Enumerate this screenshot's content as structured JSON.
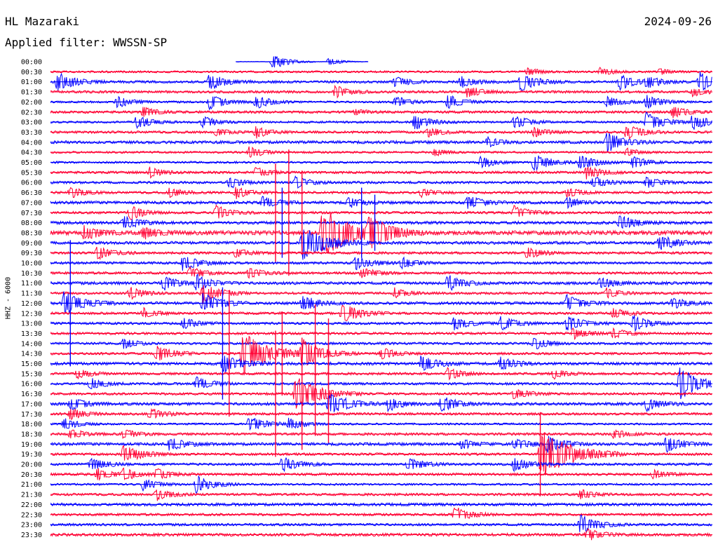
{
  "header": {
    "station": "HL Mazaraki",
    "date": "2024-09-26",
    "filter": "Applied filter: WWSSN-SP"
  },
  "chart_data": {
    "type": "helicorder",
    "title": "HL Mazaraki",
    "date": "2024-09-26",
    "filter": "WWSSN-SP",
    "channel_label": "HHZ - 6000",
    "colors": {
      "even_rows": "#0000ff",
      "odd_rows": "#ff0033",
      "background": "#ffffff"
    },
    "rows": [
      "00:00",
      "00:30",
      "01:00",
      "01:30",
      "02:00",
      "02:30",
      "03:00",
      "03:30",
      "04:00",
      "04:30",
      "05:00",
      "05:30",
      "06:00",
      "06:30",
      "07:00",
      "07:30",
      "08:00",
      "08:30",
      "09:00",
      "09:30",
      "10:00",
      "10:30",
      "11:00",
      "11:30",
      "12:00",
      "12:30",
      "13:00",
      "13:30",
      "14:00",
      "14:30",
      "15:00",
      "15:30",
      "16:00",
      "16:30",
      "17:00",
      "17:30",
      "18:00",
      "18:30",
      "19:00",
      "19:30",
      "20:00",
      "20:30",
      "21:00",
      "21:30",
      "22:00",
      "22:30",
      "23:00",
      "23:30"
    ],
    "row_minutes": 30,
    "trace_start_fraction": {
      "00:00": 0.28
    },
    "trace_end_fraction": {
      "00:00": 0.48
    },
    "noise_level": [
      0.3,
      1,
      1.2,
      1.2,
      1,
      1.2,
      1,
      1.2,
      1.4,
      1,
      1,
      1.2,
      1.2,
      1.2,
      1.4,
      1.2,
      1.4,
      2,
      1.4,
      1.2,
      1.2,
      1.2,
      1.4,
      1.2,
      1.4,
      1.2,
      1.2,
      1.2,
      1.2,
      1.2,
      1.4,
      1.2,
      1.2,
      1.2,
      1.4,
      1.2,
      1,
      1.2,
      1.4,
      1.2,
      1.2,
      1.2,
      1,
      1.2,
      1.4,
      1.2,
      1.2,
      1.4
    ],
    "events": [
      {
        "row": "00:00",
        "t": 0.335,
        "amp": 8
      },
      {
        "row": "00:00",
        "t": 0.42,
        "amp": 4
      },
      {
        "row": "00:30",
        "t": 0.72,
        "amp": 4
      },
      {
        "row": "00:30",
        "t": 0.83,
        "amp": 4
      },
      {
        "row": "00:30",
        "t": 0.92,
        "amp": 3
      },
      {
        "row": "01:00",
        "t": 0.01,
        "amp": 10
      },
      {
        "row": "01:00",
        "t": 0.24,
        "amp": 8
      },
      {
        "row": "01:00",
        "t": 0.52,
        "amp": 6
      },
      {
        "row": "01:00",
        "t": 0.62,
        "amp": 6
      },
      {
        "row": "01:00",
        "t": 0.71,
        "amp": 9
      },
      {
        "row": "01:00",
        "t": 0.86,
        "amp": 8
      },
      {
        "row": "01:00",
        "t": 0.9,
        "amp": 6
      },
      {
        "row": "01:00",
        "t": 0.98,
        "amp": 10
      },
      {
        "row": "01:30",
        "t": 0.43,
        "amp": 6
      },
      {
        "row": "01:30",
        "t": 0.63,
        "amp": 6
      },
      {
        "row": "01:30",
        "t": 0.97,
        "amp": 4
      },
      {
        "row": "02:00",
        "t": 0.1,
        "amp": 6
      },
      {
        "row": "02:00",
        "t": 0.24,
        "amp": 8
      },
      {
        "row": "02:00",
        "t": 0.31,
        "amp": 7
      },
      {
        "row": "02:00",
        "t": 0.52,
        "amp": 6
      },
      {
        "row": "02:00",
        "t": 0.6,
        "amp": 7
      },
      {
        "row": "02:00",
        "t": 0.84,
        "amp": 6
      },
      {
        "row": "02:00",
        "t": 0.9,
        "amp": 7
      },
      {
        "row": "02:30",
        "t": 0.14,
        "amp": 5
      },
      {
        "row": "02:30",
        "t": 0.46,
        "amp": 3
      },
      {
        "row": "02:30",
        "t": 0.94,
        "amp": 6
      },
      {
        "row": "03:00",
        "t": 0.13,
        "amp": 7
      },
      {
        "row": "03:00",
        "t": 0.23,
        "amp": 6
      },
      {
        "row": "03:00",
        "t": 0.55,
        "amp": 8
      },
      {
        "row": "03:00",
        "t": 0.7,
        "amp": 7
      },
      {
        "row": "03:00",
        "t": 0.9,
        "amp": 10
      },
      {
        "row": "03:00",
        "t": 0.97,
        "amp": 8
      },
      {
        "row": "03:30",
        "t": 0.25,
        "amp": 4
      },
      {
        "row": "03:30",
        "t": 0.31,
        "amp": 6
      },
      {
        "row": "03:30",
        "t": 0.57,
        "amp": 5
      },
      {
        "row": "03:30",
        "t": 0.73,
        "amp": 5
      },
      {
        "row": "03:30",
        "t": 0.87,
        "amp": 8
      },
      {
        "row": "04:00",
        "t": 0.84,
        "amp": 10
      },
      {
        "row": "04:00",
        "t": 0.66,
        "amp": 5
      },
      {
        "row": "04:30",
        "t": 0.3,
        "amp": 6
      },
      {
        "row": "04:30",
        "t": 0.58,
        "amp": 4
      },
      {
        "row": "04:30",
        "t": 0.87,
        "amp": 4
      },
      {
        "row": "05:00",
        "t": 0.65,
        "amp": 6
      },
      {
        "row": "05:00",
        "t": 0.73,
        "amp": 9
      },
      {
        "row": "05:00",
        "t": 0.8,
        "amp": 8
      },
      {
        "row": "05:00",
        "t": 0.88,
        "amp": 6
      },
      {
        "row": "05:30",
        "t": 0.15,
        "amp": 5
      },
      {
        "row": "05:30",
        "t": 0.31,
        "amp": 5
      },
      {
        "row": "05:30",
        "t": 0.81,
        "amp": 7
      },
      {
        "row": "06:00",
        "t": 0.27,
        "amp": 6
      },
      {
        "row": "06:00",
        "t": 0.37,
        "amp": 6
      },
      {
        "row": "06:00",
        "t": 0.82,
        "amp": 6
      },
      {
        "row": "06:00",
        "t": 0.9,
        "amp": 6
      },
      {
        "row": "06:30",
        "t": 0.03,
        "amp": 6
      },
      {
        "row": "06:30",
        "t": 0.18,
        "amp": 5
      },
      {
        "row": "06:30",
        "t": 0.28,
        "amp": 6
      },
      {
        "row": "06:30",
        "t": 0.56,
        "amp": 4
      },
      {
        "row": "06:30",
        "t": 0.78,
        "amp": 5
      },
      {
        "row": "07:00",
        "t": 0.32,
        "amp": 6
      },
      {
        "row": "07:00",
        "t": 0.45,
        "amp": 5
      },
      {
        "row": "07:00",
        "t": 0.63,
        "amp": 7
      },
      {
        "row": "07:00",
        "t": 0.78,
        "amp": 5
      },
      {
        "row": "07:30",
        "t": 0.12,
        "amp": 7
      },
      {
        "row": "07:30",
        "t": 0.25,
        "amp": 7
      },
      {
        "row": "07:30",
        "t": 0.7,
        "amp": 7
      },
      {
        "row": "08:00",
        "t": 0.11,
        "amp": 7
      },
      {
        "row": "08:00",
        "t": 0.86,
        "amp": 8
      },
      {
        "row": "08:30",
        "t": 0.05,
        "amp": 7
      },
      {
        "row": "08:30",
        "t": 0.14,
        "amp": 6
      },
      {
        "row": "08:30",
        "t": 0.41,
        "amp": 26
      },
      {
        "row": "08:30",
        "t": 0.48,
        "amp": 14
      },
      {
        "row": "09:00",
        "t": 0.38,
        "amp": 18
      },
      {
        "row": "09:00",
        "t": 0.92,
        "amp": 8
      },
      {
        "row": "09:30",
        "t": 0.07,
        "amp": 7
      },
      {
        "row": "09:30",
        "t": 0.28,
        "amp": 5
      },
      {
        "row": "09:30",
        "t": 0.72,
        "amp": 6
      },
      {
        "row": "10:00",
        "t": 0.2,
        "amp": 8
      },
      {
        "row": "10:00",
        "t": 0.46,
        "amp": 7
      },
      {
        "row": "10:00",
        "t": 0.53,
        "amp": 6
      },
      {
        "row": "10:30",
        "t": 0.21,
        "amp": 6
      },
      {
        "row": "10:30",
        "t": 0.3,
        "amp": 6
      },
      {
        "row": "10:30",
        "t": 0.47,
        "amp": 6
      },
      {
        "row": "11:00",
        "t": 0.17,
        "amp": 7
      },
      {
        "row": "11:00",
        "t": 0.22,
        "amp": 8
      },
      {
        "row": "11:00",
        "t": 0.6,
        "amp": 8
      },
      {
        "row": "11:00",
        "t": 0.83,
        "amp": 6
      },
      {
        "row": "11:30",
        "t": 0.12,
        "amp": 6
      },
      {
        "row": "11:30",
        "t": 0.23,
        "amp": 10
      },
      {
        "row": "11:30",
        "t": 0.52,
        "amp": 5
      },
      {
        "row": "11:30",
        "t": 0.84,
        "amp": 5
      },
      {
        "row": "12:00",
        "t": 0.02,
        "amp": 12
      },
      {
        "row": "12:00",
        "t": 0.23,
        "amp": 10
      },
      {
        "row": "12:00",
        "t": 0.38,
        "amp": 8
      },
      {
        "row": "12:00",
        "t": 0.78,
        "amp": 8
      },
      {
        "row": "12:00",
        "t": 0.94,
        "amp": 6
      },
      {
        "row": "12:30",
        "t": 0.14,
        "amp": 5
      },
      {
        "row": "12:30",
        "t": 0.44,
        "amp": 10
      },
      {
        "row": "12:30",
        "t": 0.85,
        "amp": 5
      },
      {
        "row": "13:00",
        "t": 0.2,
        "amp": 6
      },
      {
        "row": "13:00",
        "t": 0.61,
        "amp": 7
      },
      {
        "row": "13:00",
        "t": 0.68,
        "amp": 7
      },
      {
        "row": "13:00",
        "t": 0.78,
        "amp": 8
      },
      {
        "row": "13:00",
        "t": 0.88,
        "amp": 8
      },
      {
        "row": "13:30",
        "t": 0.79,
        "amp": 6
      },
      {
        "row": "13:30",
        "t": 0.85,
        "amp": 5
      },
      {
        "row": "14:00",
        "t": 0.11,
        "amp": 5
      },
      {
        "row": "14:00",
        "t": 0.73,
        "amp": 6
      },
      {
        "row": "14:30",
        "t": 0.16,
        "amp": 8
      },
      {
        "row": "14:30",
        "t": 0.29,
        "amp": 22
      },
      {
        "row": "14:30",
        "t": 0.38,
        "amp": 14
      },
      {
        "row": "14:30",
        "t": 0.5,
        "amp": 6
      },
      {
        "row": "15:00",
        "t": 0.26,
        "amp": 10
      },
      {
        "row": "15:00",
        "t": 0.56,
        "amp": 8
      },
      {
        "row": "15:00",
        "t": 0.68,
        "amp": 7
      },
      {
        "row": "15:30",
        "t": 0.04,
        "amp": 5
      },
      {
        "row": "15:30",
        "t": 0.6,
        "amp": 6
      },
      {
        "row": "15:30",
        "t": 0.76,
        "amp": 5
      },
      {
        "row": "16:00",
        "t": 0.06,
        "amp": 6
      },
      {
        "row": "16:00",
        "t": 0.22,
        "amp": 7
      },
      {
        "row": "16:00",
        "t": 0.95,
        "amp": 16
      },
      {
        "row": "16:30",
        "t": 0.37,
        "amp": 18
      },
      {
        "row": "16:30",
        "t": 0.7,
        "amp": 6
      },
      {
        "row": "17:00",
        "t": 0.03,
        "amp": 7
      },
      {
        "row": "17:00",
        "t": 0.42,
        "amp": 12
      },
      {
        "row": "17:00",
        "t": 0.51,
        "amp": 7
      },
      {
        "row": "17:00",
        "t": 0.59,
        "amp": 8
      },
      {
        "row": "17:00",
        "t": 0.9,
        "amp": 7
      },
      {
        "row": "17:30",
        "t": 0.03,
        "amp": 6
      },
      {
        "row": "17:30",
        "t": 0.15,
        "amp": 6
      },
      {
        "row": "18:00",
        "t": 0.02,
        "amp": 6
      },
      {
        "row": "18:00",
        "t": 0.3,
        "amp": 8
      },
      {
        "row": "18:00",
        "t": 0.36,
        "amp": 6
      },
      {
        "row": "18:30",
        "t": 0.03,
        "amp": 5
      },
      {
        "row": "18:30",
        "t": 0.11,
        "amp": 5
      },
      {
        "row": "18:30",
        "t": 0.85,
        "amp": 5
      },
      {
        "row": "19:00",
        "t": 0.18,
        "amp": 7
      },
      {
        "row": "19:00",
        "t": 0.62,
        "amp": 5
      },
      {
        "row": "19:00",
        "t": 0.7,
        "amp": 6
      },
      {
        "row": "19:00",
        "t": 0.75,
        "amp": 9
      },
      {
        "row": "19:00",
        "t": 0.93,
        "amp": 8
      },
      {
        "row": "19:30",
        "t": 0.11,
        "amp": 10
      },
      {
        "row": "19:30",
        "t": 0.74,
        "amp": 26
      },
      {
        "row": "20:00",
        "t": 0.06,
        "amp": 7
      },
      {
        "row": "20:00",
        "t": 0.35,
        "amp": 8
      },
      {
        "row": "20:00",
        "t": 0.54,
        "amp": 7
      },
      {
        "row": "20:00",
        "t": 0.7,
        "amp": 7
      },
      {
        "row": "20:30",
        "t": 0.07,
        "amp": 6
      },
      {
        "row": "20:30",
        "t": 0.11,
        "amp": 6
      },
      {
        "row": "20:30",
        "t": 0.16,
        "amp": 6
      },
      {
        "row": "20:30",
        "t": 0.91,
        "amp": 5
      },
      {
        "row": "21:00",
        "t": 0.14,
        "amp": 6
      },
      {
        "row": "21:00",
        "t": 0.22,
        "amp": 9
      },
      {
        "row": "21:30",
        "t": 0.16,
        "amp": 6
      },
      {
        "row": "21:30",
        "t": 0.8,
        "amp": 5
      },
      {
        "row": "22:30",
        "t": 0.61,
        "amp": 8
      },
      {
        "row": "23:00",
        "t": 0.8,
        "amp": 10
      },
      {
        "row": "23:30",
        "t": 0.81,
        "amp": 6
      }
    ],
    "spikes": [
      {
        "row": "07:30",
        "t": 0.34,
        "amp": 70
      },
      {
        "row": "07:30",
        "t": 0.36,
        "amp": 90
      },
      {
        "row": "07:30",
        "t": 0.38,
        "amp": 60
      },
      {
        "row": "08:00",
        "t": 0.35,
        "amp": 50
      },
      {
        "row": "08:00",
        "t": 0.47,
        "amp": 50
      },
      {
        "row": "08:00",
        "t": 0.49,
        "amp": 40
      },
      {
        "row": "14:00",
        "t": 0.26,
        "amp": 80
      },
      {
        "row": "14:30",
        "t": 0.27,
        "amp": 90
      },
      {
        "row": "14:30",
        "t": 0.35,
        "amp": 60
      },
      {
        "row": "14:30",
        "t": 0.4,
        "amp": 70
      },
      {
        "row": "14:30",
        "t": 0.42,
        "amp": 50
      },
      {
        "row": "16:30",
        "t": 0.34,
        "amp": 90
      },
      {
        "row": "16:30",
        "t": 0.38,
        "amp": 80
      },
      {
        "row": "16:30",
        "t": 0.4,
        "amp": 60
      },
      {
        "row": "16:30",
        "t": 0.42,
        "amp": 70
      },
      {
        "row": "12:00",
        "t": 0.03,
        "amp": 90
      },
      {
        "row": "19:30",
        "t": 0.74,
        "amp": 60
      }
    ]
  }
}
